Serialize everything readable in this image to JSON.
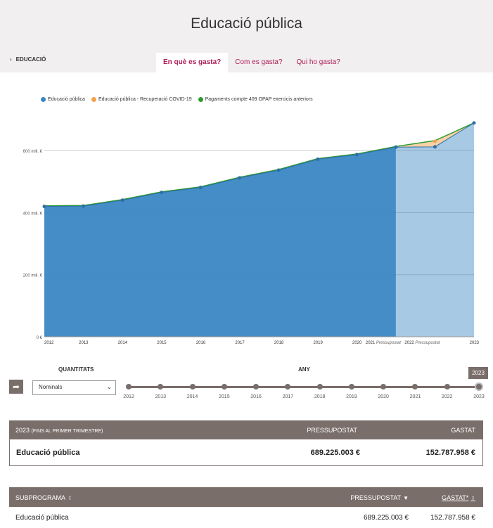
{
  "header": {
    "title": "Educació pública",
    "breadcrumb": "EDUCACIÓ",
    "tabs": [
      {
        "label": "En què es gasta?",
        "active": true
      },
      {
        "label": "Com es gasta?",
        "active": false
      },
      {
        "label": "Qui ho gasta?",
        "active": false
      }
    ]
  },
  "colors": {
    "series_main": "#3b87c4",
    "series_covid": "#f5a34a",
    "series_opap": "#2f9a2f",
    "accent": "#b01c57",
    "table_header": "#7a6e6a"
  },
  "chart_data": {
    "type": "area",
    "x": [
      "2012",
      "2013",
      "2014",
      "2015",
      "2016",
      "2017",
      "2018",
      "2019",
      "2020",
      "2021",
      "2022",
      "2023"
    ],
    "x_tick_labels": [
      "2012",
      "2013",
      "2014",
      "2015",
      "2016",
      "2017",
      "2018",
      "2019",
      "2020",
      "2021 Pressupostat",
      "2022 Pressupostat",
      "2023"
    ],
    "y_ticks": [
      "0 €",
      "200 mill. €",
      "400 mill. €",
      "600 mill. €"
    ],
    "ylim": [
      0,
      700
    ],
    "projection_from_index": 9,
    "series": [
      {
        "name": "Educació pública",
        "values": [
          420,
          421,
          440,
          465,
          481,
          512,
          537,
          572,
          587,
          611,
          612,
          689
        ]
      },
      {
        "name": "Educació pública - Recuperació COVID-19",
        "values": [
          0,
          0,
          0,
          0,
          0,
          0,
          0,
          0,
          0,
          0,
          18,
          0
        ]
      },
      {
        "name": "Pagaments compte 409 OPAP exercicis anteriors",
        "values": [
          2,
          2,
          2,
          2,
          2,
          2,
          2,
          2,
          2,
          2,
          2,
          0
        ]
      }
    ]
  },
  "controls": {
    "quantitats_label": "QUANTITATS",
    "any_label": "ANY",
    "select_value": "Nominals",
    "years": [
      "2012",
      "2013",
      "2014",
      "2015",
      "2016",
      "2017",
      "2018",
      "2019",
      "2020",
      "2021",
      "2022",
      "2023"
    ],
    "selected_year": "2023"
  },
  "summary": {
    "year": "2023",
    "year_note": "(FINS AL PRIMER TRIMESTRE)",
    "col_pressupostat": "PRESSUPOSTAT",
    "col_gastat": "GASTAT",
    "name": "Educació pública",
    "pressupostat": "689.225.003 €",
    "gastat": "152.787.958 €"
  },
  "subprogrames": {
    "col_name": "SUBPROGRAMA",
    "col_pressupostat": "PRESSUPOSTAT",
    "col_gastat": "GASTAT*",
    "rows": [
      {
        "name": "Educació pública",
        "pressupostat": "689.225.003 €",
        "gastat": "152.787.958 €"
      }
    ]
  }
}
